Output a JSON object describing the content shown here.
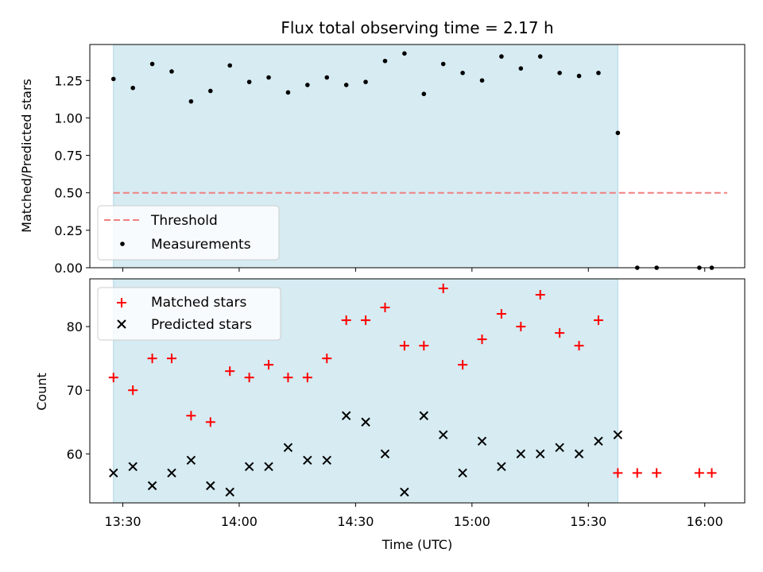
{
  "chart_data": {
    "type": "scatter",
    "title": "Flux total observing time = 2.17 h",
    "xlabel": "Time (UTC)",
    "x_ticks": [
      {
        "minutes": 810,
        "label": "13:30"
      },
      {
        "minutes": 840,
        "label": "14:00"
      },
      {
        "minutes": 870,
        "label": "14:30"
      },
      {
        "minutes": 900,
        "label": "15:00"
      },
      {
        "minutes": 930,
        "label": "15:30"
      },
      {
        "minutes": 960,
        "label": "16:00"
      }
    ],
    "xlim": [
      801.5,
      970.3
    ],
    "observing_window": [
      807.6,
      937.6
    ],
    "top": {
      "ylabel": "Matched/Predicted stars",
      "ylim": [
        0,
        1.49
      ],
      "y_ticks": [
        {
          "value": 0.0,
          "label": "0.00"
        },
        {
          "value": 0.25,
          "label": "0.25"
        },
        {
          "value": 0.5,
          "label": "0.50"
        },
        {
          "value": 0.75,
          "label": "0.75"
        },
        {
          "value": 1.0,
          "label": "1.00"
        },
        {
          "value": 1.25,
          "label": "1.25"
        }
      ],
      "threshold": {
        "name": "Threshold",
        "value": 0.5,
        "x_range": [
          807.6,
          965.8
        ],
        "color": "#f08080"
      },
      "measurements": {
        "name": "Measurements",
        "color": "#000000",
        "x": [
          807.6,
          812.6,
          817.6,
          822.6,
          827.6,
          832.6,
          837.6,
          842.6,
          847.6,
          852.6,
          857.6,
          862.6,
          867.6,
          872.6,
          877.6,
          882.6,
          887.6,
          892.6,
          897.6,
          902.6,
          907.6,
          912.6,
          917.6,
          922.6,
          927.6,
          932.6,
          937.6,
          942.6,
          947.6,
          958.6,
          961.8
        ],
        "y": [
          1.26,
          1.2,
          1.36,
          1.31,
          1.11,
          1.18,
          1.35,
          1.24,
          1.27,
          1.17,
          1.22,
          1.27,
          1.22,
          1.24,
          1.38,
          1.43,
          1.16,
          1.36,
          1.3,
          1.25,
          1.41,
          1.33,
          1.41,
          1.3,
          1.28,
          1.3,
          0.9,
          0.0,
          0.0,
          0.0,
          0.0
        ]
      }
    },
    "bottom": {
      "ylabel": "Count",
      "ylim": [
        52.3,
        87.5
      ],
      "y_ticks": [
        {
          "value": 60,
          "label": "60"
        },
        {
          "value": 70,
          "label": "70"
        },
        {
          "value": 80,
          "label": "80"
        }
      ],
      "series": [
        {
          "name": "Matched stars",
          "marker": "plus",
          "color": "#ff0000",
          "x": [
            807.6,
            812.6,
            817.6,
            822.6,
            827.6,
            832.6,
            837.6,
            842.6,
            847.6,
            852.6,
            857.6,
            862.6,
            867.6,
            872.6,
            877.6,
            882.6,
            887.6,
            892.6,
            897.6,
            902.6,
            907.6,
            912.6,
            917.6,
            922.6,
            927.6,
            932.6,
            937.6,
            942.6,
            947.6,
            958.6,
            961.8
          ],
          "y": [
            72,
            70,
            75,
            75,
            66,
            65,
            73,
            72,
            74,
            72,
            72,
            75,
            81,
            81,
            83,
            77,
            77,
            86,
            74,
            78,
            82,
            80,
            85,
            79,
            77,
            81,
            57,
            57,
            57,
            57,
            57
          ]
        },
        {
          "name": "Predicted stars",
          "marker": "x",
          "color": "#000000",
          "x": [
            807.6,
            812.6,
            817.6,
            822.6,
            827.6,
            832.6,
            837.6,
            842.6,
            847.6,
            852.6,
            857.6,
            862.6,
            867.6,
            872.6,
            877.6,
            882.6,
            887.6,
            892.6,
            897.6,
            902.6,
            907.6,
            912.6,
            917.6,
            922.6,
            927.6,
            932.6,
            937.6
          ],
          "y": [
            57,
            58,
            55,
            57,
            59,
            55,
            54,
            58,
            58,
            61,
            59,
            59,
            66,
            65,
            60,
            54,
            66,
            63,
            57,
            62,
            58,
            60,
            60,
            61,
            60,
            62,
            63
          ]
        }
      ]
    }
  }
}
